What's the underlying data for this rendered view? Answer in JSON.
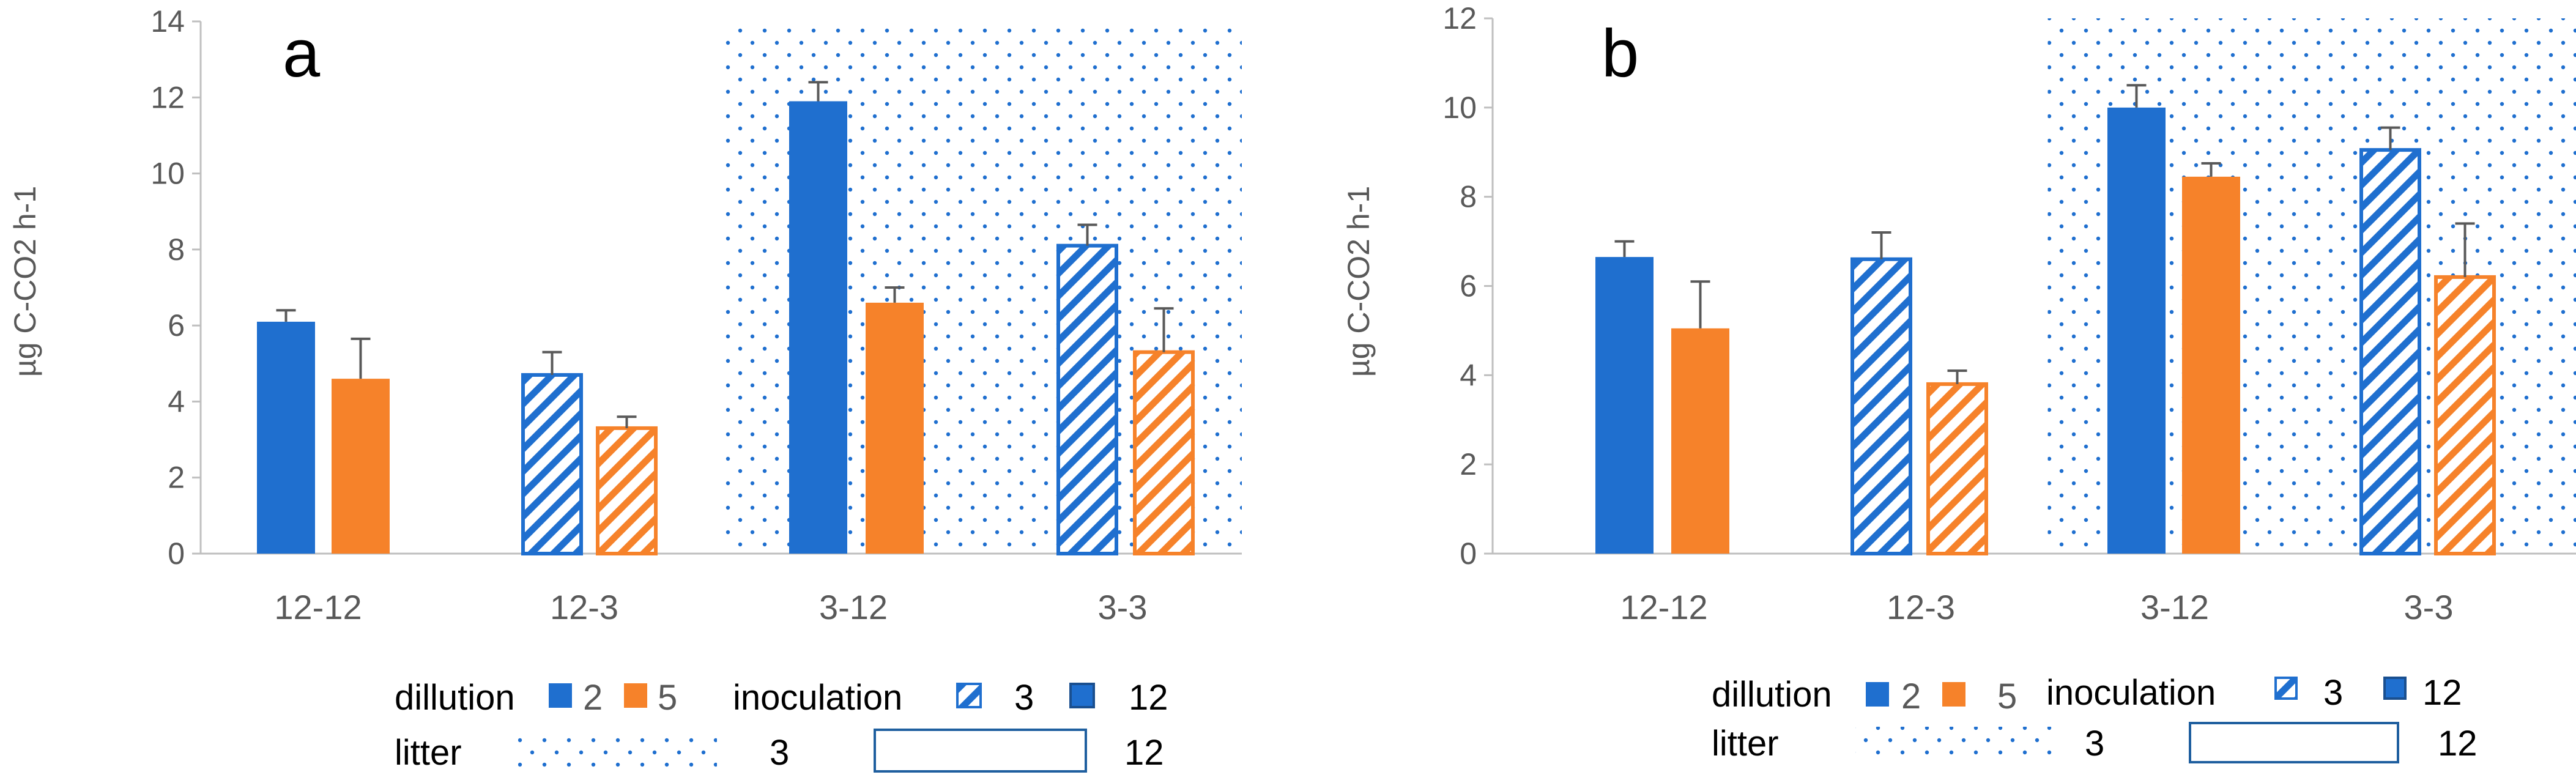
{
  "colors": {
    "blue": "#1f6fcf",
    "orange": "#f6822a",
    "axis": "#bfbfbf",
    "text": "#595959"
  },
  "chart_data": [
    {
      "type": "bar",
      "panel_label": "a",
      "ylabel": "µg C-CO2 h-1",
      "ylim": [
        0,
        14
      ],
      "yticks": [
        0,
        2,
        4,
        6,
        8,
        10,
        12,
        14
      ],
      "categories": [
        "12-12",
        "12-3",
        "3-12",
        "3-3"
      ],
      "shaded_categories": [
        "3-12",
        "3-3"
      ],
      "series": [
        {
          "name": "2",
          "values": [
            6.1,
            4.7,
            11.9,
            8.1
          ],
          "errors": [
            0.3,
            0.6,
            0.5,
            0.55
          ]
        },
        {
          "name": "5",
          "values": [
            4.6,
            3.3,
            6.6,
            5.3
          ],
          "errors": [
            1.05,
            0.3,
            0.4,
            1.15
          ]
        }
      ]
    },
    {
      "type": "bar",
      "panel_label": "b",
      "ylabel": "µg C-CO2 h-1",
      "ylim": [
        0,
        12
      ],
      "yticks": [
        0,
        2,
        4,
        6,
        8,
        10,
        12
      ],
      "categories": [
        "12-12",
        "12-3",
        "3-12",
        "3-3"
      ],
      "shaded_categories": [
        "3-12",
        "3-3"
      ],
      "series": [
        {
          "name": "2",
          "values": [
            6.65,
            6.6,
            10.0,
            9.05
          ],
          "errors": [
            0.35,
            0.6,
            0.5,
            0.5
          ]
        },
        {
          "name": "5",
          "values": [
            5.05,
            3.8,
            8.45,
            6.2
          ],
          "errors": [
            1.05,
            0.3,
            0.3,
            1.2
          ]
        }
      ]
    }
  ],
  "legend": {
    "dillution_label": "dillution",
    "dillution_items": [
      "2",
      "5"
    ],
    "inoculation_label": "inoculation",
    "inoculation_items": [
      "3",
      "12"
    ],
    "litter_label": "litter",
    "litter_items": [
      "3",
      "12"
    ]
  }
}
